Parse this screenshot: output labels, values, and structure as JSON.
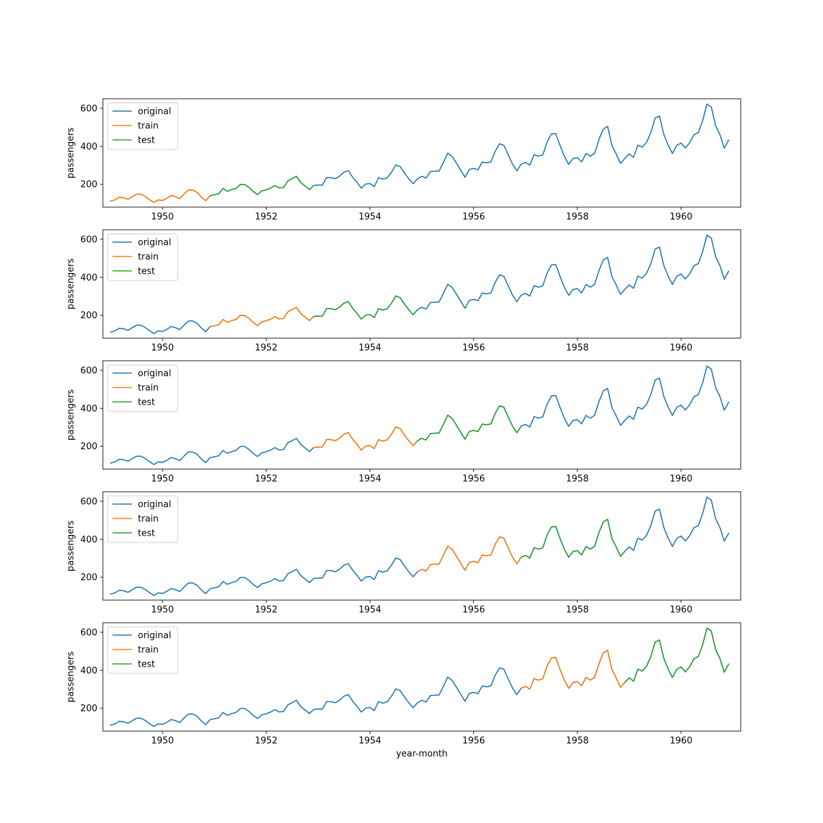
{
  "colors": {
    "original": "#1f77b4",
    "train": "#ff7f0e",
    "test": "#2ca02c",
    "axes": "#000000",
    "legend_border": "#cccccc"
  },
  "chart_data": [
    {
      "type": "line",
      "panel": 1,
      "ylabel": "passengers",
      "xlabel": "",
      "xlim": [
        1948.85,
        1961.15
      ],
      "ylim": [
        80,
        650
      ],
      "xticks": [
        1950,
        1952,
        1954,
        1956,
        1958,
        1960
      ],
      "yticks": [
        200,
        400,
        600
      ],
      "grid": false,
      "legend": {
        "placement": "upper-left",
        "entries": [
          "original",
          "train",
          "test"
        ]
      },
      "series": [
        {
          "name": "original",
          "range": "1949-01 to 1960-12",
          "index_range": [
            0,
            143
          ]
        },
        {
          "name": "train",
          "range": "1949-01 to 1950-12",
          "index_range": [
            0,
            23
          ]
        },
        {
          "name": "test",
          "range": "1951-01 to 1952-12",
          "index_range": [
            23,
            47
          ]
        }
      ]
    },
    {
      "type": "line",
      "panel": 2,
      "ylabel": "passengers",
      "xlabel": "",
      "xlim": [
        1948.85,
        1961.15
      ],
      "ylim": [
        80,
        650
      ],
      "xticks": [
        1950,
        1952,
        1954,
        1956,
        1958,
        1960
      ],
      "yticks": [
        200,
        400,
        600
      ],
      "grid": false,
      "legend": {
        "placement": "upper-left",
        "entries": [
          "original",
          "train",
          "test"
        ]
      },
      "series": [
        {
          "name": "original",
          "range": "1949-01 to 1960-12",
          "index_range": [
            0,
            143
          ]
        },
        {
          "name": "train",
          "range": "1951-01 to 1952-12",
          "index_range": [
            23,
            47
          ]
        },
        {
          "name": "test",
          "range": "1953-01 to 1954-12",
          "index_range": [
            47,
            71
          ]
        }
      ]
    },
    {
      "type": "line",
      "panel": 3,
      "ylabel": "passengers",
      "xlabel": "",
      "xlim": [
        1948.85,
        1961.15
      ],
      "ylim": [
        80,
        650
      ],
      "xticks": [
        1950,
        1952,
        1954,
        1956,
        1958,
        1960
      ],
      "yticks": [
        200,
        400,
        600
      ],
      "grid": false,
      "legend": {
        "placement": "upper-left",
        "entries": [
          "original",
          "train",
          "test"
        ]
      },
      "series": [
        {
          "name": "original",
          "range": "1949-01 to 1960-12",
          "index_range": [
            0,
            143
          ]
        },
        {
          "name": "train",
          "range": "1953-01 to 1954-12",
          "index_range": [
            47,
            71
          ]
        },
        {
          "name": "test",
          "range": "1955-01 to 1956-12",
          "index_range": [
            71,
            95
          ]
        }
      ]
    },
    {
      "type": "line",
      "panel": 4,
      "ylabel": "passengers",
      "xlabel": "",
      "xlim": [
        1948.85,
        1961.15
      ],
      "ylim": [
        80,
        650
      ],
      "xticks": [
        1950,
        1952,
        1954,
        1956,
        1958,
        1960
      ],
      "yticks": [
        200,
        400,
        600
      ],
      "grid": false,
      "legend": {
        "placement": "upper-left",
        "entries": [
          "original",
          "train",
          "test"
        ]
      },
      "series": [
        {
          "name": "original",
          "range": "1949-01 to 1960-12",
          "index_range": [
            0,
            143
          ]
        },
        {
          "name": "train",
          "range": "1955-01 to 1956-12",
          "index_range": [
            71,
            95
          ]
        },
        {
          "name": "test",
          "range": "1957-01 to 1958-12",
          "index_range": [
            95,
            119
          ]
        }
      ]
    },
    {
      "type": "line",
      "panel": 5,
      "ylabel": "passengers",
      "xlabel": "year-month",
      "xlim": [
        1948.85,
        1961.15
      ],
      "ylim": [
        80,
        650
      ],
      "xticks": [
        1950,
        1952,
        1954,
        1956,
        1958,
        1960
      ],
      "yticks": [
        200,
        400,
        600
      ],
      "grid": false,
      "legend": {
        "placement": "upper-left",
        "entries": [
          "original",
          "train",
          "test"
        ]
      },
      "series": [
        {
          "name": "original",
          "range": "1949-01 to 1960-12",
          "index_range": [
            0,
            143
          ]
        },
        {
          "name": "train",
          "range": "1957-01 to 1958-12",
          "index_range": [
            95,
            119
          ]
        },
        {
          "name": "test",
          "range": "1959-01 to 1960-12",
          "index_range": [
            119,
            143
          ]
        }
      ]
    }
  ],
  "monthly_series": {
    "start": "1949-01",
    "values": [
      112,
      118,
      132,
      129,
      121,
      135,
      148,
      148,
      136,
      119,
      104,
      118,
      115,
      126,
      141,
      135,
      125,
      149,
      170,
      170,
      158,
      133,
      114,
      140,
      145,
      150,
      178,
      163,
      172,
      178,
      199,
      199,
      184,
      162,
      146,
      166,
      171,
      180,
      193,
      181,
      183,
      218,
      230,
      242,
      209,
      191,
      172,
      194,
      196,
      196,
      236,
      235,
      229,
      243,
      264,
      272,
      237,
      211,
      180,
      201,
      204,
      188,
      235,
      227,
      234,
      264,
      302,
      293,
      259,
      229,
      203,
      229,
      242,
      233,
      267,
      269,
      270,
      315,
      364,
      347,
      312,
      274,
      237,
      278,
      284,
      277,
      317,
      313,
      318,
      374,
      413,
      405,
      355,
      306,
      271,
      306,
      315,
      301,
      356,
      348,
      355,
      422,
      465,
      467,
      404,
      347,
      305,
      336,
      340,
      318,
      362,
      348,
      363,
      435,
      491,
      505,
      404,
      359,
      310,
      337,
      360,
      342,
      406,
      396,
      420,
      472,
      548,
      559,
      463,
      407,
      362,
      405,
      417,
      391,
      419,
      461,
      472,
      535,
      622,
      606,
      508,
      461,
      390,
      432
    ]
  }
}
